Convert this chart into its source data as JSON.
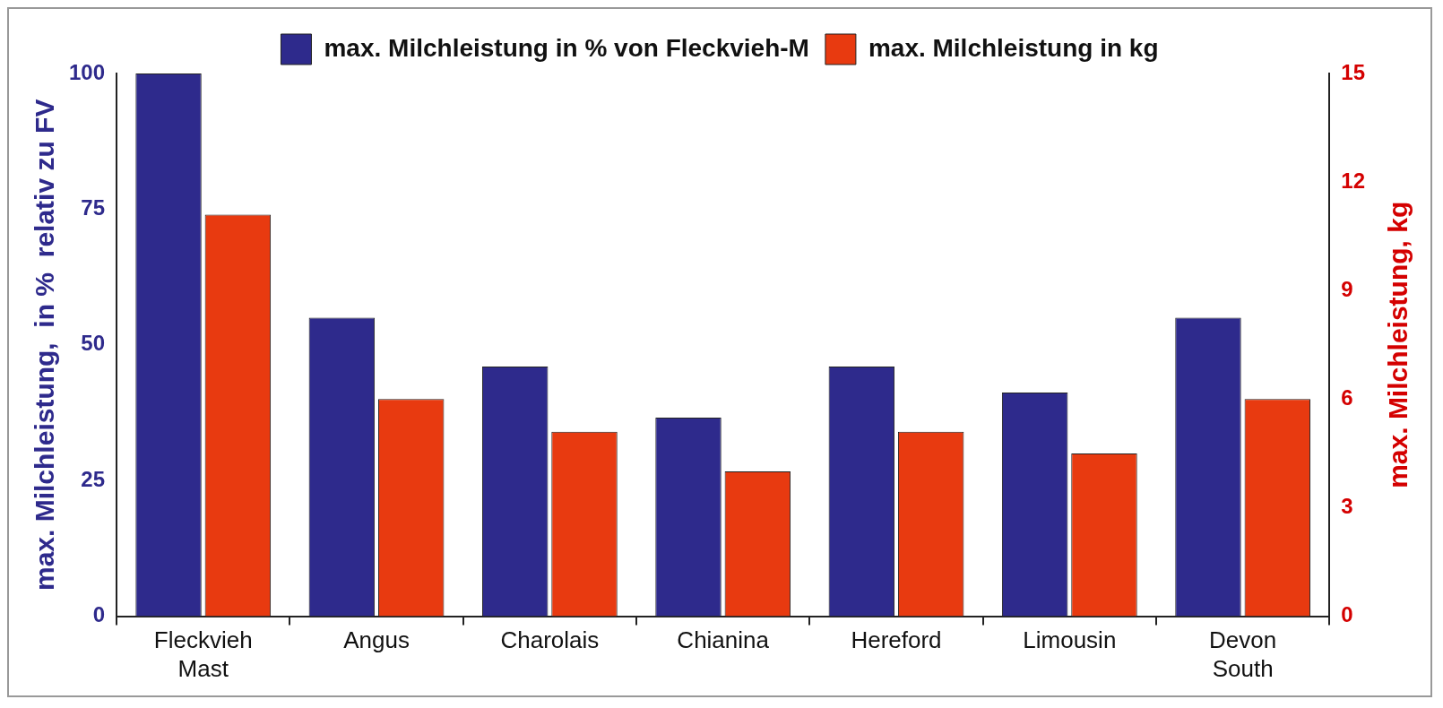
{
  "chart_data": {
    "type": "bar",
    "categories": [
      "Fleckvieh\nMast",
      "Angus",
      "Charolais",
      "Chianina",
      "Hereford",
      "Limousin",
      "Devon\nSouth"
    ],
    "series": [
      {
        "name": "max. Milchleistung in % von Fleckvieh-M",
        "color": "#2e2a8c",
        "values": [
          100,
          55,
          46,
          36.6,
          46,
          41.2,
          55
        ]
      },
      {
        "name": "max. Milchleistung in kg",
        "color": "#e83a10",
        "axis": "y2",
        "values": [
          11.1,
          6,
          5.1,
          4,
          5.1,
          4.5,
          6
        ]
      }
    ],
    "ylabel": "max. Milchleistung,  in %  relativ zu FV",
    "y2label": "max. Milchleistung, kg",
    "ylim": [
      0,
      100
    ],
    "yticks": [
      0,
      25,
      50,
      75,
      100
    ],
    "y2lim": [
      0,
      15
    ],
    "y2ticks": [
      0,
      3,
      6,
      9,
      12,
      15
    ],
    "grid": false,
    "legend": "top"
  }
}
